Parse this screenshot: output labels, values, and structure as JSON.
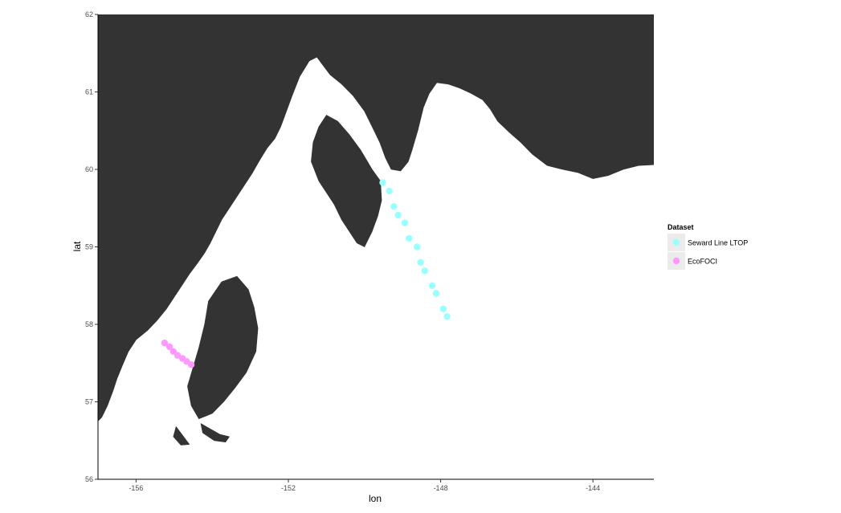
{
  "chart_data": {
    "type": "scatter",
    "title": "",
    "xlabel": "lon",
    "ylabel": "lat",
    "xlim": [
      -157.0,
      -142.4
    ],
    "ylim": [
      56.0,
      62.0
    ],
    "x_ticks": [
      -156,
      -152,
      -148,
      -144
    ],
    "x_tick_labels": [
      "-156",
      "-152",
      "-148",
      "-144"
    ],
    "y_ticks": [
      56,
      57,
      58,
      59,
      60,
      61,
      62
    ],
    "y_tick_labels": [
      "56",
      "57",
      "58",
      "59",
      "60",
      "61",
      "62"
    ],
    "grid": false,
    "legend": {
      "title": "Dataset",
      "position": "right"
    },
    "colors": {
      "land": "#333333",
      "water": "#ffffff",
      "axis": "#000000"
    },
    "series": [
      {
        "name": "Seward Line LTOP",
        "color": "#99ffff",
        "points": [
          {
            "x": -149.52,
            "y": 59.83
          },
          {
            "x": -149.35,
            "y": 59.72
          },
          {
            "x": -149.23,
            "y": 59.52
          },
          {
            "x": -149.12,
            "y": 59.41
          },
          {
            "x": -148.94,
            "y": 59.31
          },
          {
            "x": -148.83,
            "y": 59.11
          },
          {
            "x": -148.62,
            "y": 59.0
          },
          {
            "x": -148.53,
            "y": 58.8
          },
          {
            "x": -148.42,
            "y": 58.69
          },
          {
            "x": -148.22,
            "y": 58.5
          },
          {
            "x": -148.12,
            "y": 58.4
          },
          {
            "x": -147.93,
            "y": 58.2
          },
          {
            "x": -147.83,
            "y": 58.1
          }
        ]
      },
      {
        "name": "EcoFOCI",
        "color": "#ff99ff",
        "points": [
          {
            "x": -155.25,
            "y": 57.76
          },
          {
            "x": -155.12,
            "y": 57.71
          },
          {
            "x": -155.02,
            "y": 57.65
          },
          {
            "x": -154.91,
            "y": 57.6
          },
          {
            "x": -154.78,
            "y": 57.56
          },
          {
            "x": -154.67,
            "y": 57.52
          },
          {
            "x": -154.55,
            "y": 57.48
          }
        ]
      }
    ],
    "land": [
      [
        [
          -157.0,
          56.0
        ],
        [
          -157.0,
          62.0
        ],
        [
          -142.4,
          62.0
        ],
        [
          -142.4,
          60.06
        ],
        [
          -142.8,
          60.05
        ],
        [
          -143.2,
          60.0
        ],
        [
          -143.6,
          59.92
        ],
        [
          -144.0,
          59.88
        ],
        [
          -144.4,
          59.96
        ],
        [
          -144.8,
          60.0
        ],
        [
          -145.2,
          60.05
        ],
        [
          -145.6,
          60.2
        ],
        [
          -145.9,
          60.35
        ],
        [
          -146.2,
          60.48
        ],
        [
          -146.5,
          60.62
        ],
        [
          -146.7,
          60.78
        ],
        [
          -146.9,
          60.9
        ],
        [
          -147.2,
          60.98
        ],
        [
          -147.5,
          61.05
        ],
        [
          -147.8,
          61.1
        ],
        [
          -148.1,
          61.12
        ],
        [
          -148.3,
          60.98
        ],
        [
          -148.45,
          60.8
        ],
        [
          -148.6,
          60.5
        ],
        [
          -148.75,
          60.25
        ],
        [
          -148.85,
          60.1
        ],
        [
          -149.05,
          59.98
        ],
        [
          -149.3,
          60.0
        ],
        [
          -149.45,
          60.15
        ],
        [
          -149.6,
          60.35
        ],
        [
          -149.8,
          60.55
        ],
        [
          -150.0,
          60.75
        ],
        [
          -150.3,
          60.95
        ],
        [
          -150.6,
          61.1
        ],
        [
          -150.9,
          61.22
        ],
        [
          -151.1,
          61.35
        ],
        [
          -151.25,
          61.45
        ],
        [
          -151.45,
          61.4
        ],
        [
          -151.7,
          61.2
        ],
        [
          -151.9,
          60.95
        ],
        [
          -152.05,
          60.75
        ],
        [
          -152.2,
          60.55
        ],
        [
          -152.35,
          60.4
        ],
        [
          -152.55,
          60.28
        ],
        [
          -152.75,
          60.12
        ],
        [
          -152.95,
          59.95
        ],
        [
          -153.15,
          59.8
        ],
        [
          -153.35,
          59.65
        ],
        [
          -153.55,
          59.5
        ],
        [
          -153.75,
          59.35
        ],
        [
          -153.9,
          59.2
        ],
        [
          -154.05,
          59.05
        ],
        [
          -154.2,
          58.92
        ],
        [
          -154.4,
          58.78
        ],
        [
          -154.6,
          58.65
        ],
        [
          -154.8,
          58.5
        ],
        [
          -155.0,
          58.35
        ],
        [
          -155.2,
          58.2
        ],
        [
          -155.45,
          58.05
        ],
        [
          -155.7,
          57.92
        ],
        [
          -156.0,
          57.8
        ],
        [
          -156.2,
          57.65
        ],
        [
          -156.35,
          57.48
        ],
        [
          -156.5,
          57.3
        ],
        [
          -156.6,
          57.15
        ],
        [
          -156.75,
          56.95
        ],
        [
          -156.9,
          56.8
        ],
        [
          -157.0,
          56.75
        ]
      ],
      [
        [
          -151.2,
          59.85
        ],
        [
          -151.0,
          59.7
        ],
        [
          -150.8,
          59.55
        ],
        [
          -150.6,
          59.35
        ],
        [
          -150.4,
          59.2
        ],
        [
          -150.2,
          59.05
        ],
        [
          -150.0,
          59.0
        ],
        [
          -149.8,
          59.2
        ],
        [
          -149.65,
          59.4
        ],
        [
          -149.55,
          59.6
        ],
        [
          -149.58,
          59.85
        ],
        [
          -149.8,
          60.0
        ],
        [
          -150.1,
          60.25
        ],
        [
          -150.4,
          60.45
        ],
        [
          -150.7,
          60.62
        ],
        [
          -151.0,
          60.7
        ],
        [
          -151.2,
          60.55
        ],
        [
          -151.35,
          60.35
        ],
        [
          -151.4,
          60.1
        ]
      ],
      [
        [
          -154.1,
          58.3
        ],
        [
          -153.75,
          58.55
        ],
        [
          -153.35,
          58.62
        ],
        [
          -153.05,
          58.45
        ],
        [
          -152.9,
          58.22
        ],
        [
          -152.8,
          57.95
        ],
        [
          -152.85,
          57.65
        ],
        [
          -153.1,
          57.38
        ],
        [
          -153.4,
          57.18
        ],
        [
          -153.7,
          57.0
        ],
        [
          -154.0,
          56.85
        ],
        [
          -154.35,
          56.78
        ],
        [
          -154.55,
          56.95
        ],
        [
          -154.65,
          57.2
        ],
        [
          -154.5,
          57.45
        ],
        [
          -154.35,
          57.7
        ],
        [
          -154.2,
          58.0
        ]
      ],
      [
        [
          -154.3,
          56.72
        ],
        [
          -154.05,
          56.65
        ],
        [
          -153.8,
          56.58
        ],
        [
          -153.55,
          56.55
        ],
        [
          -153.65,
          56.48
        ],
        [
          -153.95,
          56.5
        ],
        [
          -154.25,
          56.6
        ]
      ],
      [
        [
          -154.95,
          56.68
        ],
        [
          -154.75,
          56.55
        ],
        [
          -154.6,
          56.45
        ],
        [
          -154.82,
          56.44
        ],
        [
          -155.02,
          56.55
        ]
      ]
    ]
  }
}
